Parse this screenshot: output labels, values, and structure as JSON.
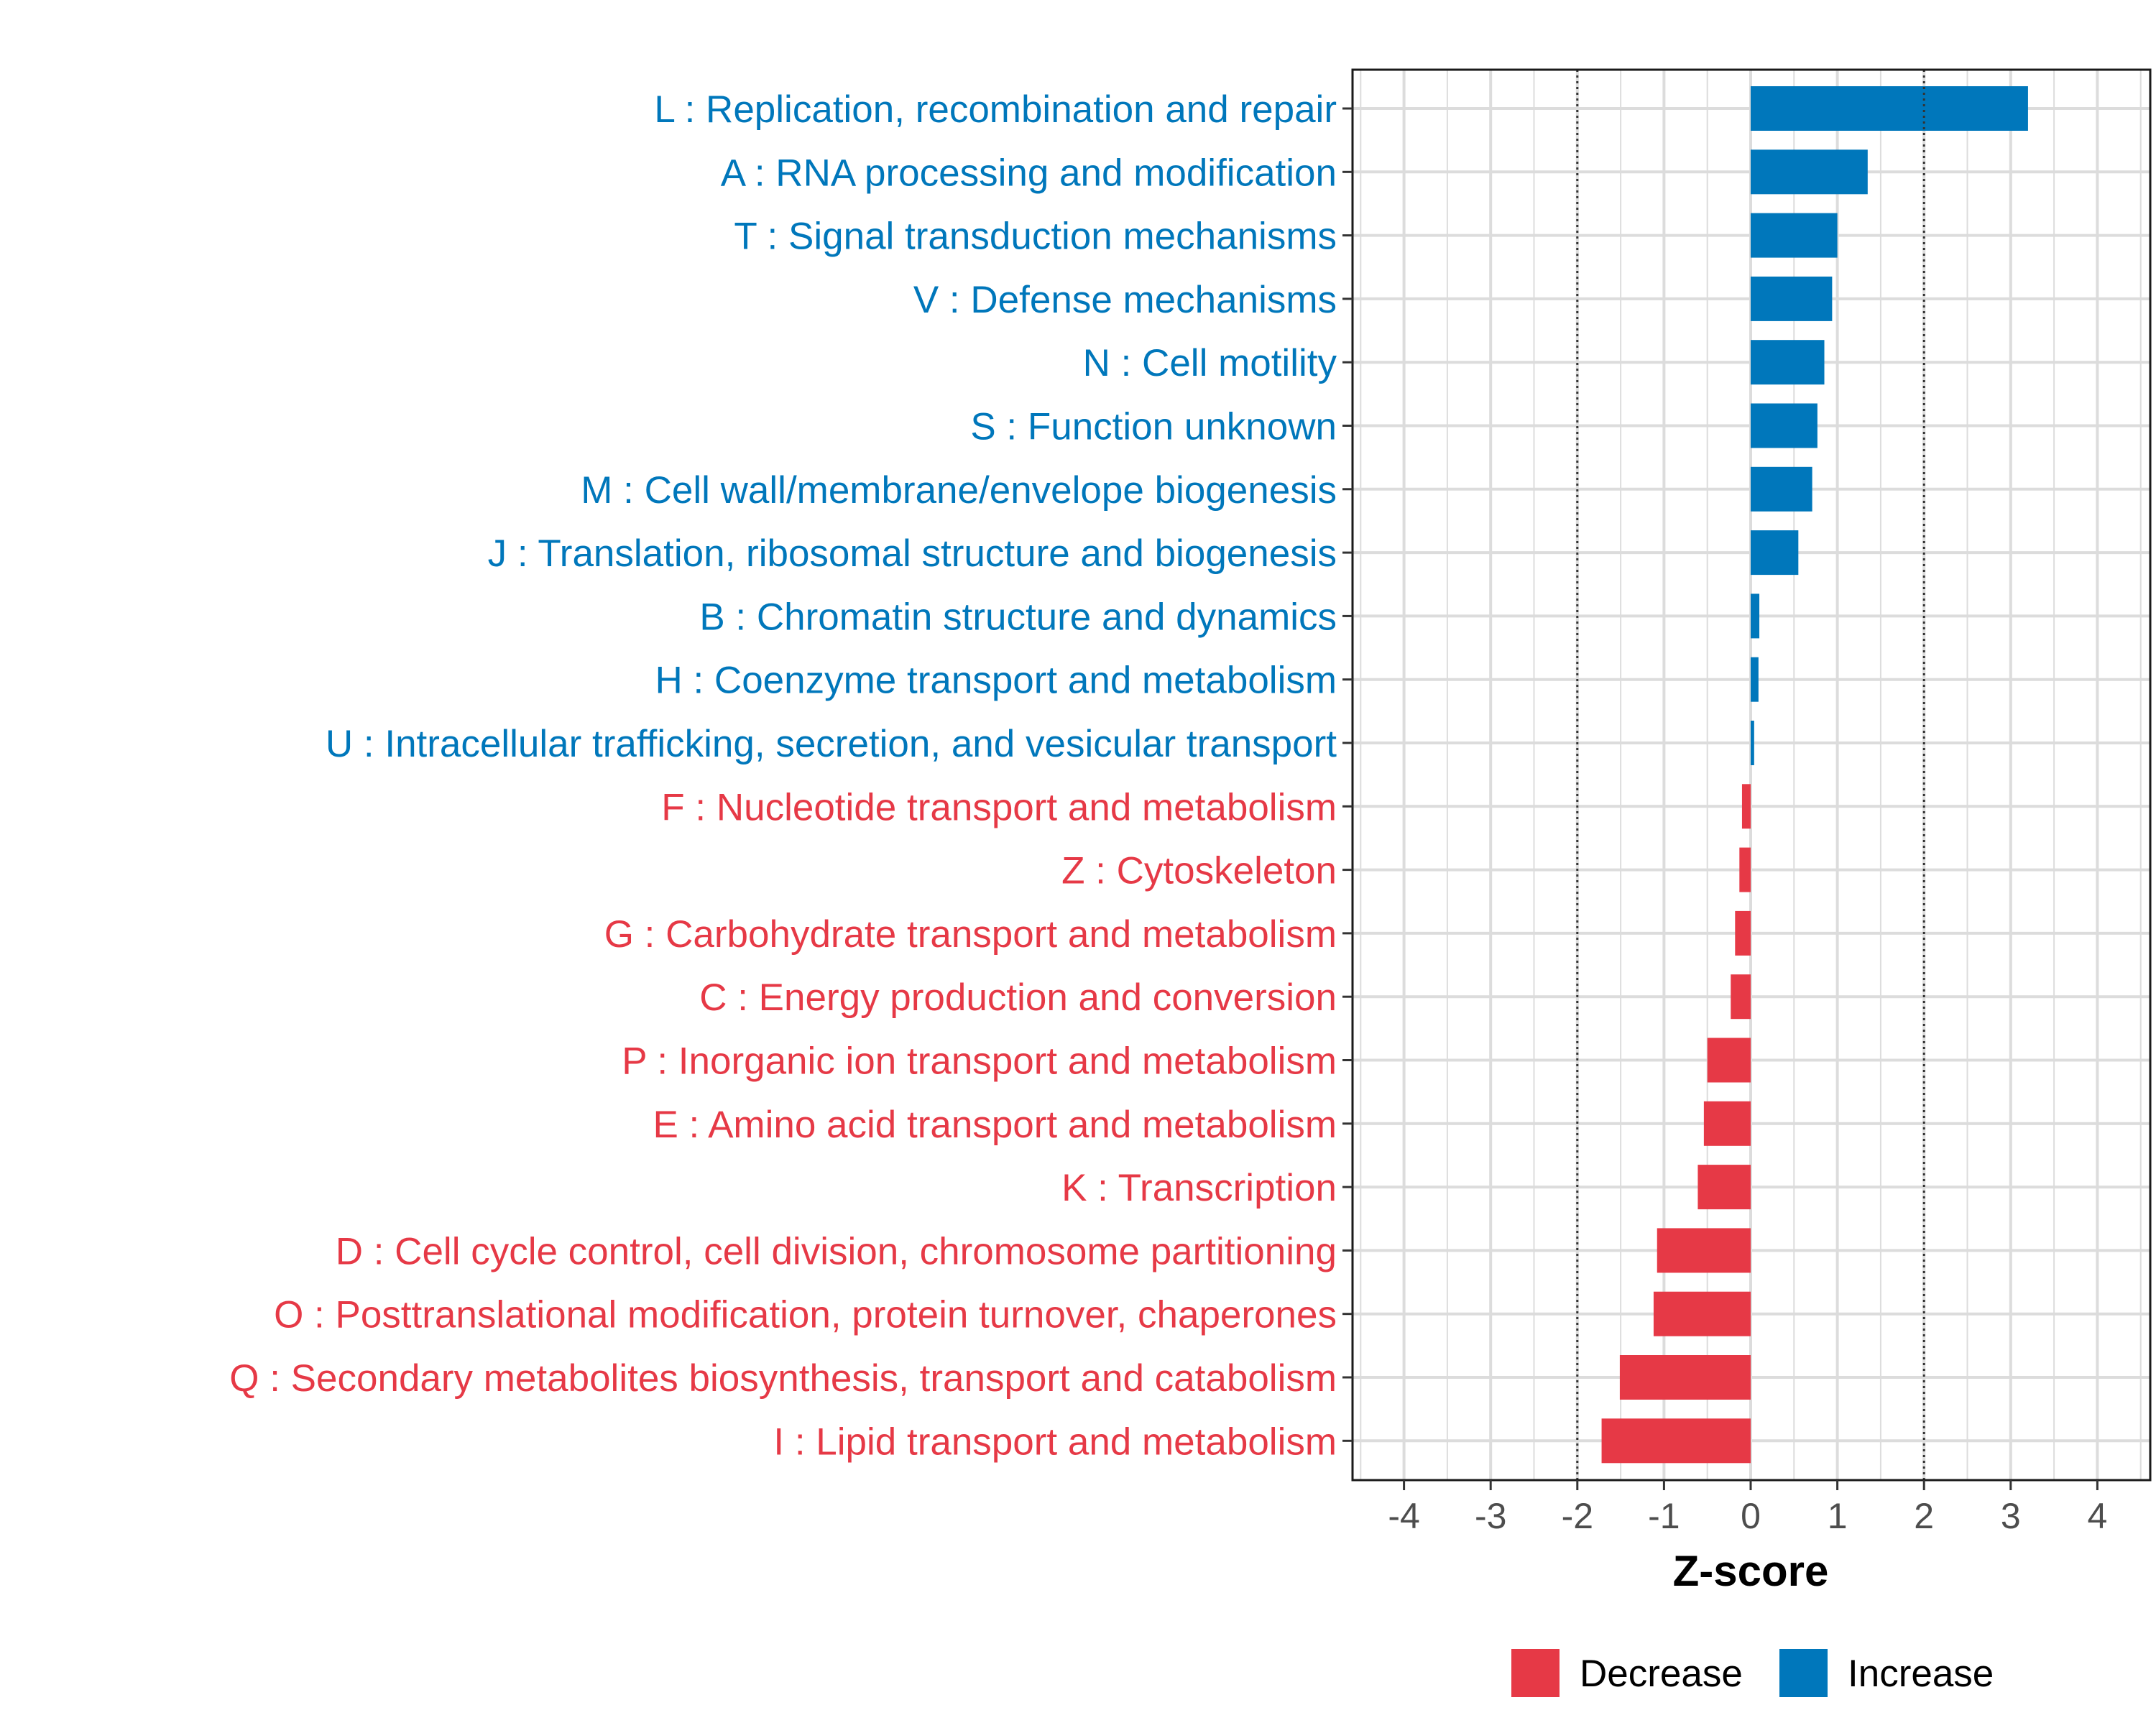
{
  "chart_data": {
    "type": "bar",
    "orientation": "horizontal",
    "xlabel": "Z-score",
    "ylabel": "",
    "xlim": [
      -4.6,
      4.6
    ],
    "x_ticks": [
      -4,
      -3,
      -2,
      -1,
      0,
      1,
      2,
      3,
      4
    ],
    "x_tick_labels": [
      "-4",
      "-3",
      "-2",
      "-1",
      "0",
      "1",
      "2",
      "3",
      "4"
    ],
    "threshold_lines": [
      -2,
      2
    ],
    "grid": true,
    "colors": {
      "Increase": "#0077BB",
      "Decrease": "#E63946"
    },
    "legend": {
      "position": "bottom",
      "entries": [
        {
          "label": "Decrease",
          "color": "#E63946"
        },
        {
          "label": "Increase",
          "color": "#0077BB"
        }
      ]
    },
    "categories": [
      {
        "label": "L : Replication, recombination and repair",
        "value": 3.2,
        "group": "Increase"
      },
      {
        "label": "A : RNA processing and modification",
        "value": 1.35,
        "group": "Increase"
      },
      {
        "label": "T : Signal transduction mechanisms",
        "value": 1.0,
        "group": "Increase"
      },
      {
        "label": "V : Defense mechanisms",
        "value": 0.94,
        "group": "Increase"
      },
      {
        "label": "N : Cell motility",
        "value": 0.85,
        "group": "Increase"
      },
      {
        "label": "S : Function unknown",
        "value": 0.77,
        "group": "Increase"
      },
      {
        "label": "M : Cell wall/membrane/envelope biogenesis",
        "value": 0.71,
        "group": "Increase"
      },
      {
        "label": "J : Translation, ribosomal structure and biogenesis",
        "value": 0.55,
        "group": "Increase"
      },
      {
        "label": "B : Chromatin structure and dynamics",
        "value": 0.1,
        "group": "Increase"
      },
      {
        "label": "H : Coenzyme transport and metabolism",
        "value": 0.09,
        "group": "Increase"
      },
      {
        "label": "U : Intracellular trafficking, secretion, and vesicular transport",
        "value": 0.04,
        "group": "Increase"
      },
      {
        "label": "F : Nucleotide transport and metabolism",
        "value": -0.1,
        "group": "Decrease"
      },
      {
        "label": "Z : Cytoskeleton",
        "value": -0.13,
        "group": "Decrease"
      },
      {
        "label": "G : Carbohydrate transport and metabolism",
        "value": -0.18,
        "group": "Decrease"
      },
      {
        "label": "C : Energy production and conversion",
        "value": -0.23,
        "group": "Decrease"
      },
      {
        "label": "P : Inorganic ion transport and metabolism",
        "value": -0.5,
        "group": "Decrease"
      },
      {
        "label": "E : Amino acid transport and metabolism",
        "value": -0.54,
        "group": "Decrease"
      },
      {
        "label": "K : Transcription",
        "value": -0.61,
        "group": "Decrease"
      },
      {
        "label": "D : Cell cycle control, cell division, chromosome partitioning",
        "value": -1.08,
        "group": "Decrease"
      },
      {
        "label": "O : Posttranslational modification, protein turnover, chaperones",
        "value": -1.12,
        "group": "Decrease"
      },
      {
        "label": "Q : Secondary metabolites biosynthesis, transport and catabolism",
        "value": -1.51,
        "group": "Decrease"
      },
      {
        "label": "I : Lipid transport and metabolism",
        "value": -1.72,
        "group": "Decrease"
      }
    ]
  }
}
